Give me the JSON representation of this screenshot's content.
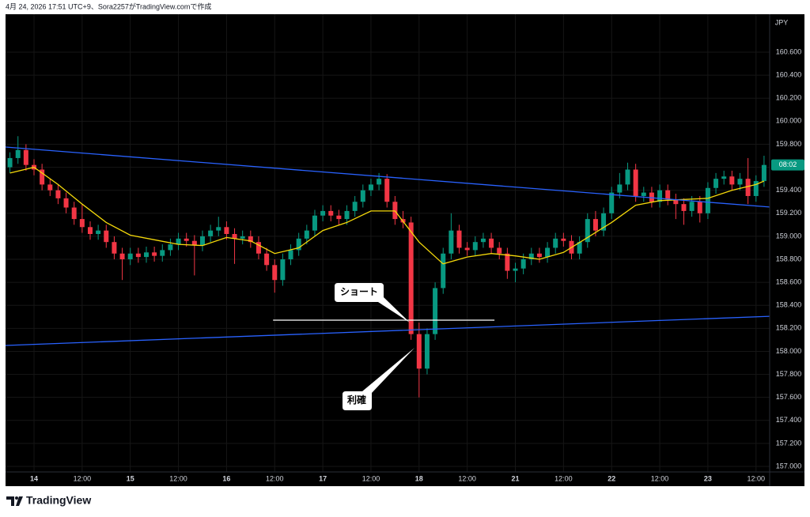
{
  "header": {
    "title": "4月 24, 2026 17:51 UTC+9、Sora2257がTradingView.comで作成"
  },
  "brand": "TradingView",
  "chart_data": {
    "type": "candlestick",
    "y_axis_label": "JPY",
    "countdown": "08:02",
    "countdown_color": "#089981",
    "up_color": "#089981",
    "down_color": "#f23645",
    "background": "#000000",
    "grid": true,
    "xlim": [
      -7.1,
      183.4
    ],
    "ylim": [
      156.952,
      160.93
    ],
    "yticks": [
      {
        "value": 157.0,
        "label": "157.000"
      },
      {
        "value": 157.2,
        "label": "157.200"
      },
      {
        "value": 157.4,
        "label": "157.400"
      },
      {
        "value": 157.6,
        "label": "157.600"
      },
      {
        "value": 157.8,
        "label": "157.800"
      },
      {
        "value": 158.0,
        "label": "158.000"
      },
      {
        "value": 158.2,
        "label": "158.200"
      },
      {
        "value": 158.4,
        "label": "158.400"
      },
      {
        "value": 158.6,
        "label": "158.600"
      },
      {
        "value": 158.8,
        "label": "158.800"
      },
      {
        "value": 159.0,
        "label": "159.000"
      },
      {
        "value": 159.2,
        "label": "159.200"
      },
      {
        "value": 159.4,
        "label": "159.400"
      },
      {
        "value": 159.6,
        "label": "159.600"
      },
      {
        "value": 159.8,
        "label": "159.800"
      },
      {
        "value": 160.0,
        "label": "160.000"
      },
      {
        "value": 160.2,
        "label": "160.200"
      },
      {
        "value": 160.4,
        "label": "160.400"
      },
      {
        "value": 160.6,
        "label": "160.600"
      }
    ],
    "xticks": [
      {
        "value": 0,
        "label": "14"
      },
      {
        "value": 12,
        "label": "12:00"
      },
      {
        "value": 24,
        "label": "15"
      },
      {
        "value": 36,
        "label": "12:00"
      },
      {
        "value": 48,
        "label": "16"
      },
      {
        "value": 60,
        "label": "12:00"
      },
      {
        "value": 72,
        "label": "17"
      },
      {
        "value": 84,
        "label": "12:00"
      },
      {
        "value": 96,
        "label": "18"
      },
      {
        "value": 108,
        "label": "12:00"
      },
      {
        "value": 120,
        "label": "21"
      },
      {
        "value": 132,
        "label": "12:00"
      },
      {
        "value": 144,
        "label": "22"
      },
      {
        "value": 156,
        "label": "12:00"
      },
      {
        "value": 168,
        "label": "23"
      },
      {
        "value": 180,
        "label": "12:00"
      }
    ],
    "x": [
      -6,
      -4,
      -2,
      0,
      2,
      4,
      6,
      8,
      10,
      12,
      14,
      16,
      18,
      20,
      22,
      24,
      26,
      28,
      30,
      32,
      34,
      36,
      38,
      40,
      42,
      44,
      46,
      48,
      50,
      52,
      54,
      56,
      58,
      60,
      62,
      64,
      66,
      68,
      70,
      72,
      74,
      76,
      78,
      80,
      82,
      84,
      86,
      88,
      90,
      92,
      94,
      96,
      98,
      100,
      102,
      104,
      106,
      108,
      110,
      112,
      114,
      116,
      118,
      120,
      122,
      124,
      126,
      128,
      130,
      132,
      134,
      136,
      138,
      140,
      142,
      144,
      146,
      148,
      150,
      152,
      154,
      156,
      158,
      160,
      162,
      164,
      166,
      168,
      170,
      172,
      174,
      176,
      178,
      180,
      182
    ],
    "open": [
      159.6,
      159.68,
      159.75,
      159.62,
      159.58,
      159.45,
      159.4,
      159.33,
      159.25,
      159.15,
      159.08,
      159.02,
      159.05,
      158.95,
      158.85,
      158.8,
      158.85,
      158.82,
      158.86,
      158.83,
      158.88,
      158.93,
      158.98,
      158.96,
      158.92,
      159.0,
      159.05,
      159.08,
      159.02,
      158.98,
      159.0,
      158.95,
      158.85,
      158.75,
      158.62,
      158.8,
      158.88,
      158.98,
      159.05,
      159.18,
      159.22,
      159.18,
      159.15,
      159.22,
      159.3,
      159.4,
      159.45,
      159.5,
      159.3,
      159.15,
      159.12,
      158.15,
      157.85,
      158.15,
      158.55,
      158.85,
      159.05,
      158.9,
      158.88,
      158.95,
      158.98,
      158.9,
      158.85,
      158.7,
      158.72,
      158.8,
      158.85,
      158.82,
      158.9,
      158.98,
      158.96,
      158.85,
      158.95,
      159.15,
      159.05,
      159.2,
      159.38,
      159.45,
      159.58,
      159.35,
      159.38,
      159.3,
      159.4,
      159.32,
      159.28,
      159.22,
      159.3,
      159.2,
      159.42,
      159.5,
      159.52,
      159.45,
      159.5,
      159.35,
      159.48
    ],
    "high": [
      159.73,
      159.87,
      159.8,
      159.67,
      159.63,
      159.5,
      159.45,
      159.38,
      159.3,
      159.28,
      159.13,
      159.1,
      159.1,
      159.0,
      158.9,
      158.9,
      158.9,
      158.91,
      158.91,
      158.93,
      158.98,
      159.03,
      159.03,
      159.01,
      159.05,
      159.1,
      159.17,
      159.13,
      159.07,
      159.05,
      159.05,
      159.0,
      158.9,
      158.8,
      158.85,
      158.93,
      159.03,
      159.1,
      159.23,
      159.27,
      159.27,
      159.23,
      159.27,
      159.35,
      159.45,
      159.5,
      159.55,
      159.54,
      159.35,
      159.22,
      159.17,
      158.25,
      158.2,
      158.6,
      158.9,
      159.2,
      159.1,
      158.95,
      159.0,
      159.03,
      159.03,
      158.95,
      158.9,
      158.77,
      158.85,
      158.9,
      158.9,
      158.95,
      159.03,
      159.03,
      159.01,
      159.0,
      159.2,
      159.22,
      159.25,
      159.43,
      159.55,
      159.64,
      159.63,
      159.43,
      159.43,
      159.45,
      159.45,
      159.37,
      159.33,
      159.35,
      159.35,
      159.47,
      159.55,
      159.57,
      159.57,
      159.55,
      159.68,
      159.53,
      159.7
    ],
    "low": [
      159.55,
      159.63,
      159.57,
      159.53,
      159.4,
      159.35,
      159.28,
      159.2,
      159.1,
      159.03,
      158.97,
      158.97,
      158.9,
      158.8,
      158.62,
      158.75,
      158.77,
      158.77,
      158.78,
      158.78,
      158.83,
      158.88,
      158.91,
      158.66,
      158.87,
      158.95,
      159.0,
      158.97,
      158.76,
      158.93,
      158.9,
      158.8,
      158.7,
      158.51,
      158.57,
      158.75,
      158.83,
      158.93,
      159.0,
      159.13,
      159.13,
      159.1,
      159.1,
      159.17,
      159.25,
      159.35,
      159.4,
      159.25,
      159.1,
      159.07,
      158.1,
      157.6,
      157.8,
      158.1,
      158.5,
      158.8,
      158.85,
      158.83,
      158.83,
      158.9,
      158.85,
      158.8,
      158.63,
      158.6,
      158.67,
      158.75,
      158.77,
      158.77,
      158.85,
      158.91,
      158.8,
      158.8,
      158.9,
      159.0,
      159.0,
      159.15,
      159.33,
      159.4,
      159.3,
      159.3,
      159.25,
      159.25,
      159.27,
      159.15,
      159.1,
      159.17,
      159.12,
      159.15,
      159.37,
      159.45,
      159.4,
      159.4,
      159.28,
      159.3,
      159.43
    ],
    "close": [
      159.68,
      159.75,
      159.62,
      159.58,
      159.45,
      159.4,
      159.33,
      159.25,
      159.15,
      159.08,
      159.02,
      159.05,
      158.95,
      158.85,
      158.8,
      158.85,
      158.82,
      158.86,
      158.83,
      158.88,
      158.93,
      158.98,
      158.96,
      158.92,
      159.0,
      159.05,
      159.08,
      159.02,
      158.98,
      159.0,
      158.95,
      158.85,
      158.75,
      158.62,
      158.8,
      158.88,
      158.98,
      159.05,
      159.18,
      159.22,
      159.18,
      159.15,
      159.22,
      159.3,
      159.4,
      159.45,
      159.5,
      159.3,
      159.15,
      159.12,
      158.15,
      157.85,
      158.15,
      158.55,
      158.85,
      159.05,
      158.9,
      158.88,
      158.95,
      158.98,
      158.9,
      158.85,
      158.7,
      158.72,
      158.8,
      158.85,
      158.82,
      158.9,
      158.98,
      158.96,
      158.85,
      158.95,
      159.15,
      159.05,
      159.2,
      159.38,
      159.45,
      159.58,
      159.35,
      159.38,
      159.3,
      159.4,
      159.32,
      159.28,
      159.22,
      159.3,
      159.2,
      159.42,
      159.5,
      159.52,
      159.45,
      159.5,
      159.35,
      159.48,
      159.62
    ],
    "overlays": [
      {
        "type": "line",
        "color": "#f5d90a",
        "x": [
          -6,
          0,
          6,
          12,
          18,
          24,
          30,
          36,
          42,
          48,
          54,
          60,
          66,
          72,
          78,
          84,
          90,
          96,
          102,
          108,
          114,
          120,
          126,
          132,
          138,
          144,
          150,
          156,
          162,
          168,
          174,
          180,
          182
        ],
        "values": [
          159.55,
          159.6,
          159.45,
          159.28,
          159.12,
          159.01,
          158.97,
          158.93,
          158.92,
          158.99,
          158.96,
          158.85,
          158.9,
          159.05,
          159.12,
          159.22,
          159.22,
          158.95,
          158.76,
          158.82,
          158.85,
          158.83,
          158.8,
          158.86,
          158.99,
          159.12,
          159.27,
          159.31,
          159.32,
          159.33,
          159.4,
          159.45,
          159.48
        ]
      },
      {
        "type": "line",
        "color": "#2962ff",
        "x": [
          -7.1,
          183.4
        ],
        "values": [
          159.776,
          159.254
        ]
      },
      {
        "type": "line",
        "color": "#2962ff",
        "x": [
          -7.1,
          183.4
        ],
        "values": [
          158.051,
          158.305
        ]
      },
      {
        "type": "line",
        "color": "#ffffff",
        "x": [
          59.6,
          114.8
        ],
        "values": [
          158.271,
          158.271
        ]
      }
    ],
    "annotations": [
      {
        "text": "ショート"
      },
      {
        "text": "利確"
      }
    ]
  }
}
